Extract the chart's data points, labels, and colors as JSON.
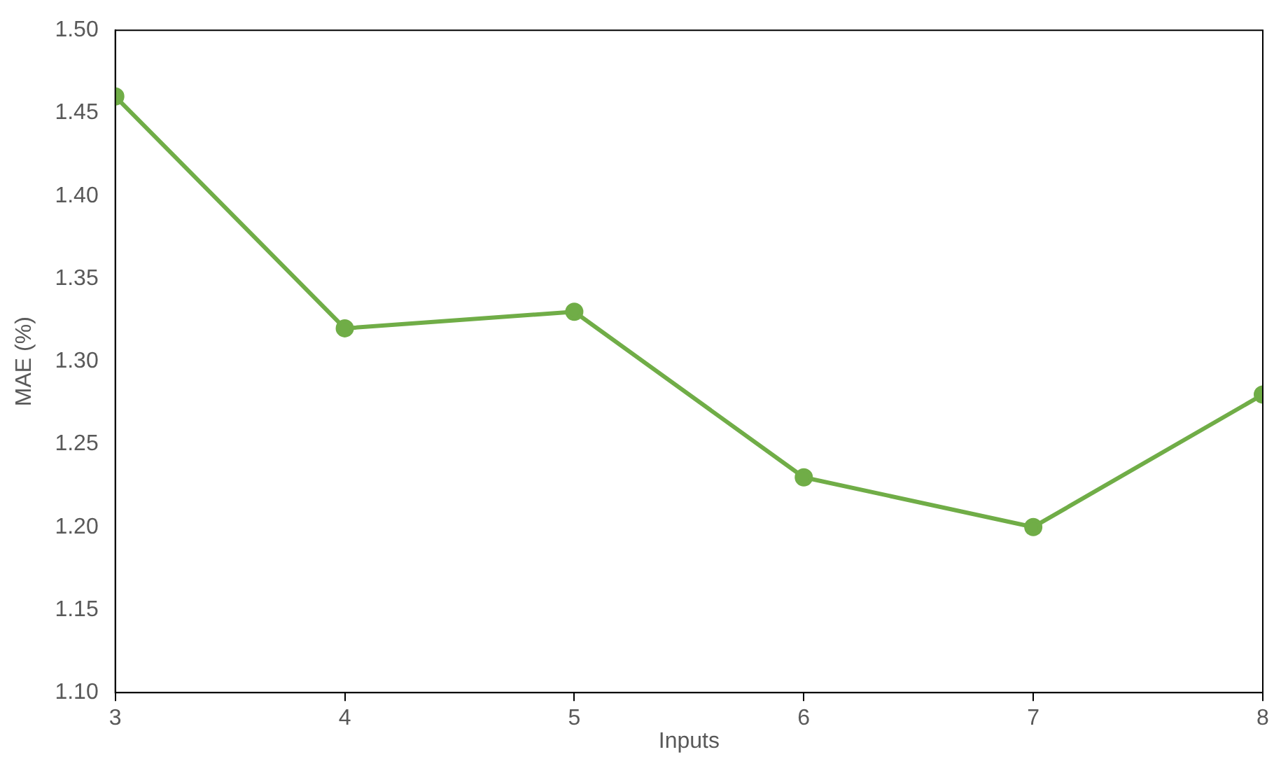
{
  "chart_data": {
    "type": "line",
    "xlabel": "Inputs",
    "ylabel": "MAE (%)",
    "x": [
      3,
      4,
      5,
      6,
      7,
      8
    ],
    "series": [
      {
        "color": "#70ad47",
        "values": [
          1.46,
          1.32,
          1.33,
          1.23,
          1.2,
          1.28
        ]
      }
    ],
    "xlim": [
      3,
      8
    ],
    "xticks": [
      3,
      4,
      5,
      6,
      7,
      8
    ],
    "ylim": [
      1.1,
      1.5
    ],
    "yticks": [
      {
        "value": 1.1,
        "label": "1.10"
      },
      {
        "value": 1.15,
        "label": "1.15"
      },
      {
        "value": 1.2,
        "label": "1.20"
      },
      {
        "value": 1.25,
        "label": "1.25"
      },
      {
        "value": 1.3,
        "label": "1.30"
      },
      {
        "value": 1.35,
        "label": "1.35"
      },
      {
        "value": 1.4,
        "label": "1.40"
      },
      {
        "value": 1.45,
        "label": "1.45"
      },
      {
        "value": 1.5,
        "label": "1.50"
      }
    ],
    "grid": false,
    "legend": false,
    "marker": "circle",
    "line_style": "solid"
  }
}
